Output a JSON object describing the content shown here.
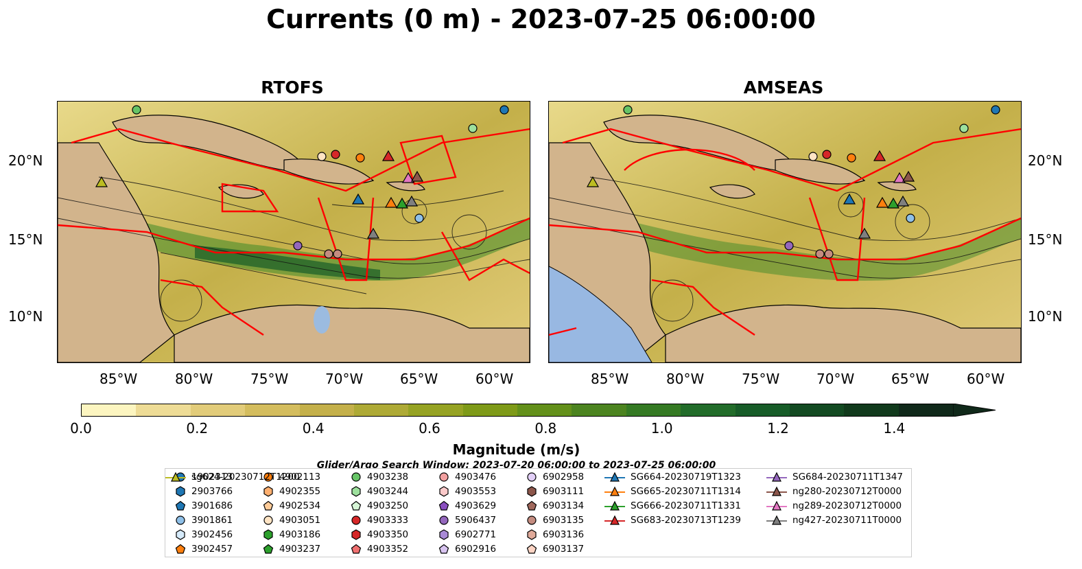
{
  "title": "Currents (0 m) - 2023-07-25 06:00:00",
  "panels": [
    {
      "title": "RTOFS"
    },
    {
      "title": "AMSEAS"
    }
  ],
  "lon_ticks": [
    "85°W",
    "80°W",
    "75°W",
    "70°W",
    "65°W",
    "60°W"
  ],
  "lat_ticks": [
    "20°N",
    "15°N",
    "10°N"
  ],
  "colorbar": {
    "label": "Magnitude (m/s)",
    "ticks": [
      "0.0",
      "0.2",
      "0.4",
      "0.6",
      "0.8",
      "1.0",
      "1.2",
      "1.4"
    ],
    "range": [
      0.0,
      1.5
    ],
    "colors": [
      "#fcf5c0",
      "#eedc96",
      "#e2cc7a",
      "#d4bd5e",
      "#c4b04a",
      "#aeaa36",
      "#96a324",
      "#7e9a18",
      "#63901a",
      "#4c8420",
      "#357a24",
      "#226c2a",
      "#175c28",
      "#134a22",
      "#113a1c",
      "#10291a"
    ]
  },
  "legend": {
    "title": "Glider/Argo Search Window: 2023-07-20 06:00:00 to 2023-07-25 06:00:00",
    "items": [
      {
        "label": "1902313",
        "marker": "circle",
        "color": "#1f77b4"
      },
      {
        "label": "2903766",
        "marker": "hexagon",
        "color": "#1f77b4"
      },
      {
        "label": "3901686",
        "marker": "pentagon",
        "color": "#1f77b4"
      },
      {
        "label": "3901861",
        "marker": "circle",
        "color": "#8fc0e8"
      },
      {
        "label": "3902456",
        "marker": "hexagon",
        "color": "#d6ebfb"
      },
      {
        "label": "3902457",
        "marker": "pentagon",
        "color": "#ff7f0e"
      },
      {
        "label": "4902113",
        "marker": "circle",
        "color": "#ff7f0e"
      },
      {
        "label": "4902355",
        "marker": "hexagon",
        "color": "#ffb070"
      },
      {
        "label": "4902534",
        "marker": "pentagon",
        "color": "#ffcc99"
      },
      {
        "label": "4903051",
        "marker": "circle",
        "color": "#ffe4c4"
      },
      {
        "label": "4903186",
        "marker": "hexagon",
        "color": "#2ca02c"
      },
      {
        "label": "4903237",
        "marker": "pentagon",
        "color": "#2ca02c"
      },
      {
        "label": "4903238",
        "marker": "circle",
        "color": "#66c466"
      },
      {
        "label": "4903244",
        "marker": "hexagon",
        "color": "#9de09d"
      },
      {
        "label": "4903250",
        "marker": "pentagon",
        "color": "#d6f5d6"
      },
      {
        "label": "4903333",
        "marker": "circle",
        "color": "#d62728"
      },
      {
        "label": "4903350",
        "marker": "hexagon",
        "color": "#d62728"
      },
      {
        "label": "4903352",
        "marker": "pentagon",
        "color": "#f07070"
      },
      {
        "label": "4903476",
        "marker": "circle",
        "color": "#f2a0a0"
      },
      {
        "label": "4903553",
        "marker": "hexagon",
        "color": "#fccaca"
      },
      {
        "label": "4903629",
        "marker": "pentagon",
        "color": "#8a4fbf"
      },
      {
        "label": "5906437",
        "marker": "circle",
        "color": "#9467bd"
      },
      {
        "label": "6902771",
        "marker": "hexagon",
        "color": "#a98ad6"
      },
      {
        "label": "6902916",
        "marker": "pentagon",
        "color": "#d8c4f0"
      },
      {
        "label": "6902958",
        "marker": "circle",
        "color": "#e2cff7"
      },
      {
        "label": "6903111",
        "marker": "hexagon",
        "color": "#8c564b"
      },
      {
        "label": "6903134",
        "marker": "pentagon",
        "color": "#a0685c"
      },
      {
        "label": "6903135",
        "marker": "circle",
        "color": "#c48c80"
      },
      {
        "label": "6903136",
        "marker": "hexagon",
        "color": "#e0aa9a"
      },
      {
        "label": "6903137",
        "marker": "pentagon",
        "color": "#fcd4c4"
      },
      {
        "label": "SG664-20230719T1323",
        "marker": "triangle-line",
        "color": "#1f77b4"
      },
      {
        "label": "SG665-20230711T1314",
        "marker": "triangle-line",
        "color": "#ff7f0e"
      },
      {
        "label": "SG666-20230711T1331",
        "marker": "triangle-line",
        "color": "#2ca02c"
      },
      {
        "label": "SG683-20230713T1239",
        "marker": "triangle-line",
        "color": "#d62728"
      },
      {
        "label": "SG684-20230711T1347",
        "marker": "triangle-line",
        "color": "#9467bd"
      },
      {
        "label": "ng280-20230712T0000",
        "marker": "triangle-line",
        "color": "#8c564b"
      },
      {
        "label": "ng289-20230712T0000",
        "marker": "triangle-line",
        "color": "#e377c2"
      },
      {
        "label": "ng427-20230711T0000",
        "marker": "triangle-line",
        "color": "#7f7f7f"
      },
      {
        "label": "sg624-20230712T1200",
        "marker": "triangle-line",
        "color": "#bcbd22"
      }
    ]
  },
  "map_colors": {
    "land": "#d2b48c",
    "boundary": "#ff0000",
    "water_inland": "#9bbbe0",
    "pacific": "#98b8e2"
  }
}
